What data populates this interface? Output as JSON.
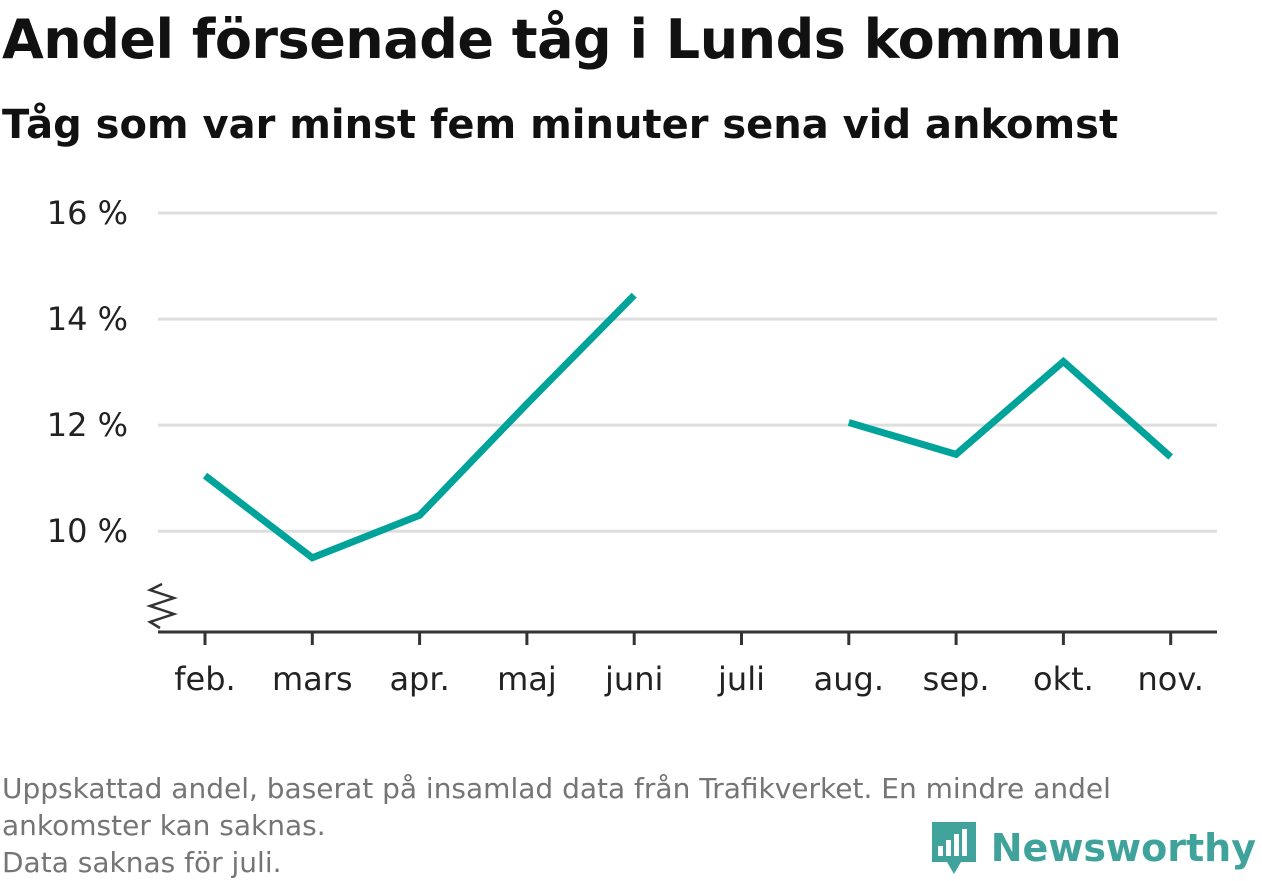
{
  "title": "Andel försenade tåg i Lunds kommun",
  "subtitle": "Tåg som var minst fem minuter sena vid ankomst",
  "footnote": {
    "line1": "Uppskattad andel, baserat på insamlad data från Trafikverket. En mindre andel",
    "line2": "ankomster kan saknas.",
    "line3": "Data saknas för juli."
  },
  "brand": {
    "name": "Newsworthy",
    "icon": "newsworthy-logo-icon",
    "color": "#3fa39c"
  },
  "chart_data": {
    "type": "line",
    "title": "Andel försenade tåg i Lunds kommun",
    "subtitle": "Tåg som var minst fem minuter sena vid ankomst",
    "categories": [
      "feb.",
      "mars",
      "apr.",
      "maj",
      "juni",
      "juli",
      "aug.",
      "sep.",
      "okt.",
      "nov."
    ],
    "series": [
      {
        "values": [
          11.05,
          9.5,
          10.3,
          12.4,
          14.45,
          null,
          12.05,
          11.45,
          13.2,
          11.4
        ],
        "color": "#00a39a"
      }
    ],
    "ylim": [
      8.1,
      16
    ],
    "yticks": [
      10,
      12,
      14,
      16
    ],
    "ytick_labels": [
      "10 %",
      "12 %",
      "14 %",
      "16 %"
    ],
    "y_axis_break": true,
    "grid": true,
    "xlabel": "",
    "ylabel": ""
  }
}
